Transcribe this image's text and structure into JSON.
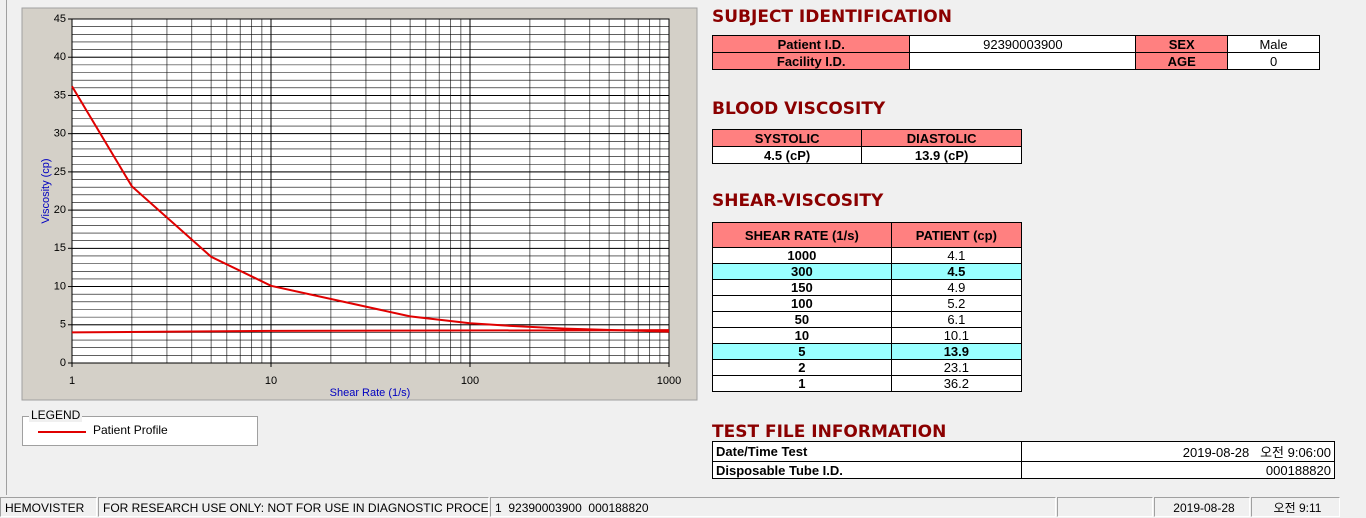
{
  "chart": {
    "type": "line",
    "xlabel": "Shear Rate (1/s)",
    "ylabel": "Viscosity (cp)",
    "xscale": "log",
    "xlim": [
      1,
      1000
    ],
    "xticks": [
      1,
      10,
      100,
      1000
    ],
    "ylim": [
      0,
      45
    ],
    "yticks": [
      0,
      5,
      10,
      15,
      20,
      25,
      30,
      35,
      40,
      45
    ],
    "grid": true,
    "series": [
      {
        "name": "Patient Profile",
        "color": "#e00000",
        "x": [
          1,
          2,
          5,
          10,
          50,
          100,
          150,
          300,
          1000
        ],
        "values": [
          36.2,
          23.1,
          13.9,
          10.1,
          6.1,
          5.2,
          4.9,
          4.5,
          4.1
        ]
      },
      {
        "color": "#e00000",
        "x": [
          1,
          10,
          1000
        ],
        "values": [
          4,
          4.2,
          4.3
        ]
      }
    ]
  },
  "legend": {
    "title": "LEGEND"
  },
  "subject": {
    "title": "SUBJECT IDENTIFICATION",
    "rows": [
      [
        "Patient I.D.",
        "92390003900",
        "SEX",
        "Male"
      ],
      [
        "Facility I.D.",
        null,
        "AGE",
        "0"
      ]
    ]
  },
  "blood": {
    "title": "BLOOD VISCOSITY",
    "headers": [
      "SYSTOLIC",
      "DIASTOLIC"
    ],
    "values": [
      "4.5 (cP)",
      "13.9 (cP)"
    ]
  },
  "shear": {
    "title": "SHEAR-VISCOSITY",
    "headers": [
      "SHEAR RATE (1/s)",
      "PATIENT (cp)"
    ],
    "rows": [
      [
        1000,
        4.1
      ],
      [
        300,
        4.5
      ],
      [
        150,
        4.9
      ],
      [
        100,
        5.2
      ],
      [
        50,
        6.1
      ],
      [
        10,
        10.1
      ],
      [
        5,
        13.9
      ],
      [
        2,
        23.1
      ],
      [
        1,
        36.2
      ]
    ],
    "highlight_rows": [
      1,
      6
    ]
  },
  "test_file": {
    "title": "TEST FILE INFORMATION",
    "rows": [
      [
        "Date/Time Test",
        "2019-08-28   오전 9:06:00"
      ],
      [
        "Disposable Tube I.D.",
        "000188820"
      ]
    ]
  },
  "status_bar": {
    "panels": [
      "HEMOVISTER",
      "FOR RESEARCH USE ONLY: NOT FOR USE IN DIAGNOSTIC PROCEDURES",
      "1  92390003900  000188820",
      null,
      "2019-08-28",
      "오전 9:11"
    ]
  }
}
